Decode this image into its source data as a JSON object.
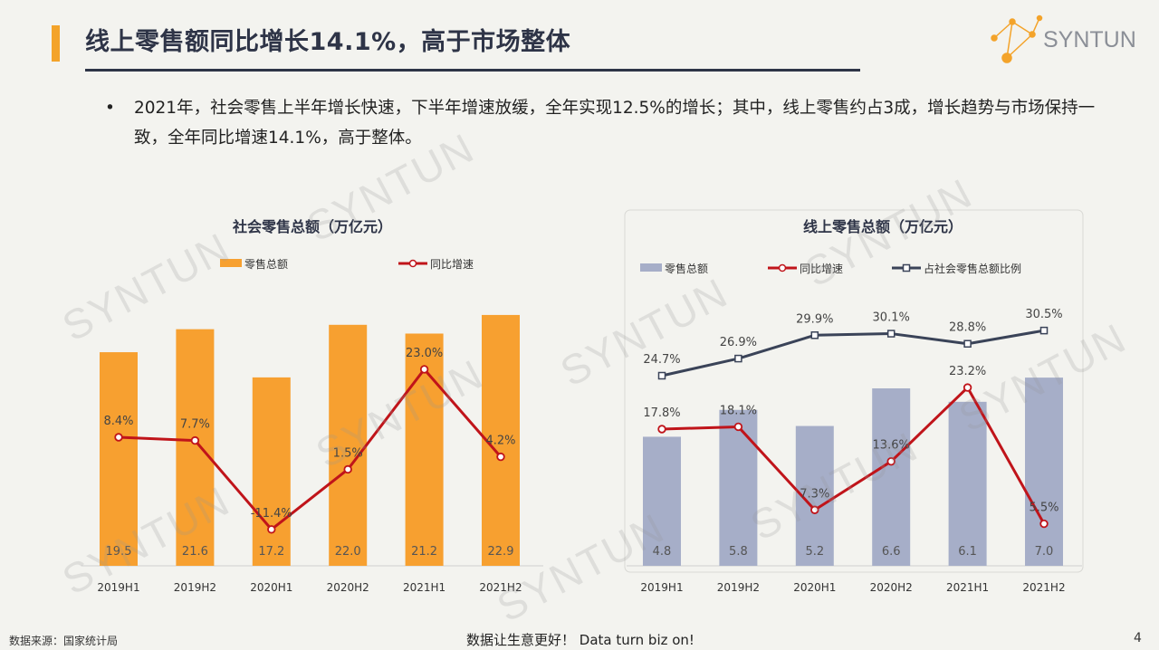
{
  "header": {
    "title": "线上零售额同比增长14.1%，高于市场整体",
    "logo_text": "SYNTUN",
    "accent_color": "#f3a32a"
  },
  "bullet": {
    "text": "2021年，社会零售上半年增长快速，下半年增速放缓，全年实现12.5%的增长；其中，线上零售约占3成，增长趋势与市场保持一致，全年同比增速14.1%，高于整体。"
  },
  "watermark": "SYNTUN",
  "chart_data": [
    {
      "type": "bar",
      "title": "社会零售总额（万亿元）",
      "categories": [
        "2019H1",
        "2019H2",
        "2020H1",
        "2020H2",
        "2021H1",
        "2021H2"
      ],
      "series": [
        {
          "name": "零售总额",
          "type": "bar",
          "color": "#f7a030",
          "values": [
            19.5,
            21.6,
            17.2,
            22.0,
            21.2,
            22.9
          ],
          "labels": [
            "19.5",
            "21.6",
            "17.2",
            "22.0",
            "21.2",
            "22.9"
          ]
        },
        {
          "name": "同比增速",
          "type": "line",
          "color": "#c0141a",
          "values": [
            8.4,
            7.7,
            -11.4,
            1.5,
            23.0,
            4.2
          ],
          "labels": [
            "8.4%",
            "7.7%",
            "-11.4%",
            "1.5%",
            "23.0%",
            "4.2%"
          ]
        }
      ],
      "legend": "top"
    },
    {
      "type": "bar",
      "title": "线上零售总额（万亿元）",
      "categories": [
        "2019H1",
        "2019H2",
        "2020H1",
        "2020H2",
        "2021H1",
        "2021H2"
      ],
      "series": [
        {
          "name": "零售总额",
          "type": "bar",
          "color": "#a6aec8",
          "values": [
            4.8,
            5.8,
            5.2,
            6.6,
            6.1,
            7.0
          ],
          "labels": [
            "4.8",
            "5.8",
            "5.2",
            "6.6",
            "6.1",
            "7.0"
          ]
        },
        {
          "name": "同比增速",
          "type": "line",
          "color": "#c0141a",
          "values": [
            17.8,
            18.1,
            7.3,
            13.6,
            23.2,
            5.5
          ],
          "labels": [
            "17.8%",
            "18.1%",
            "7.3%",
            "13.6%",
            "23.2%",
            "5.5%"
          ]
        },
        {
          "name": "占社会零售总额比例",
          "type": "line",
          "color": "#3a4358",
          "values": [
            24.7,
            26.9,
            29.9,
            30.1,
            28.8,
            30.5
          ],
          "labels": [
            "24.7%",
            "26.9%",
            "29.9%",
            "30.1%",
            "28.8%",
            "30.5%"
          ]
        }
      ],
      "legend": "top"
    }
  ],
  "footer": {
    "source": "数据来源：国家统计局",
    "slogan": "数据让生意更好！ Data turn biz on!",
    "page": "4"
  }
}
